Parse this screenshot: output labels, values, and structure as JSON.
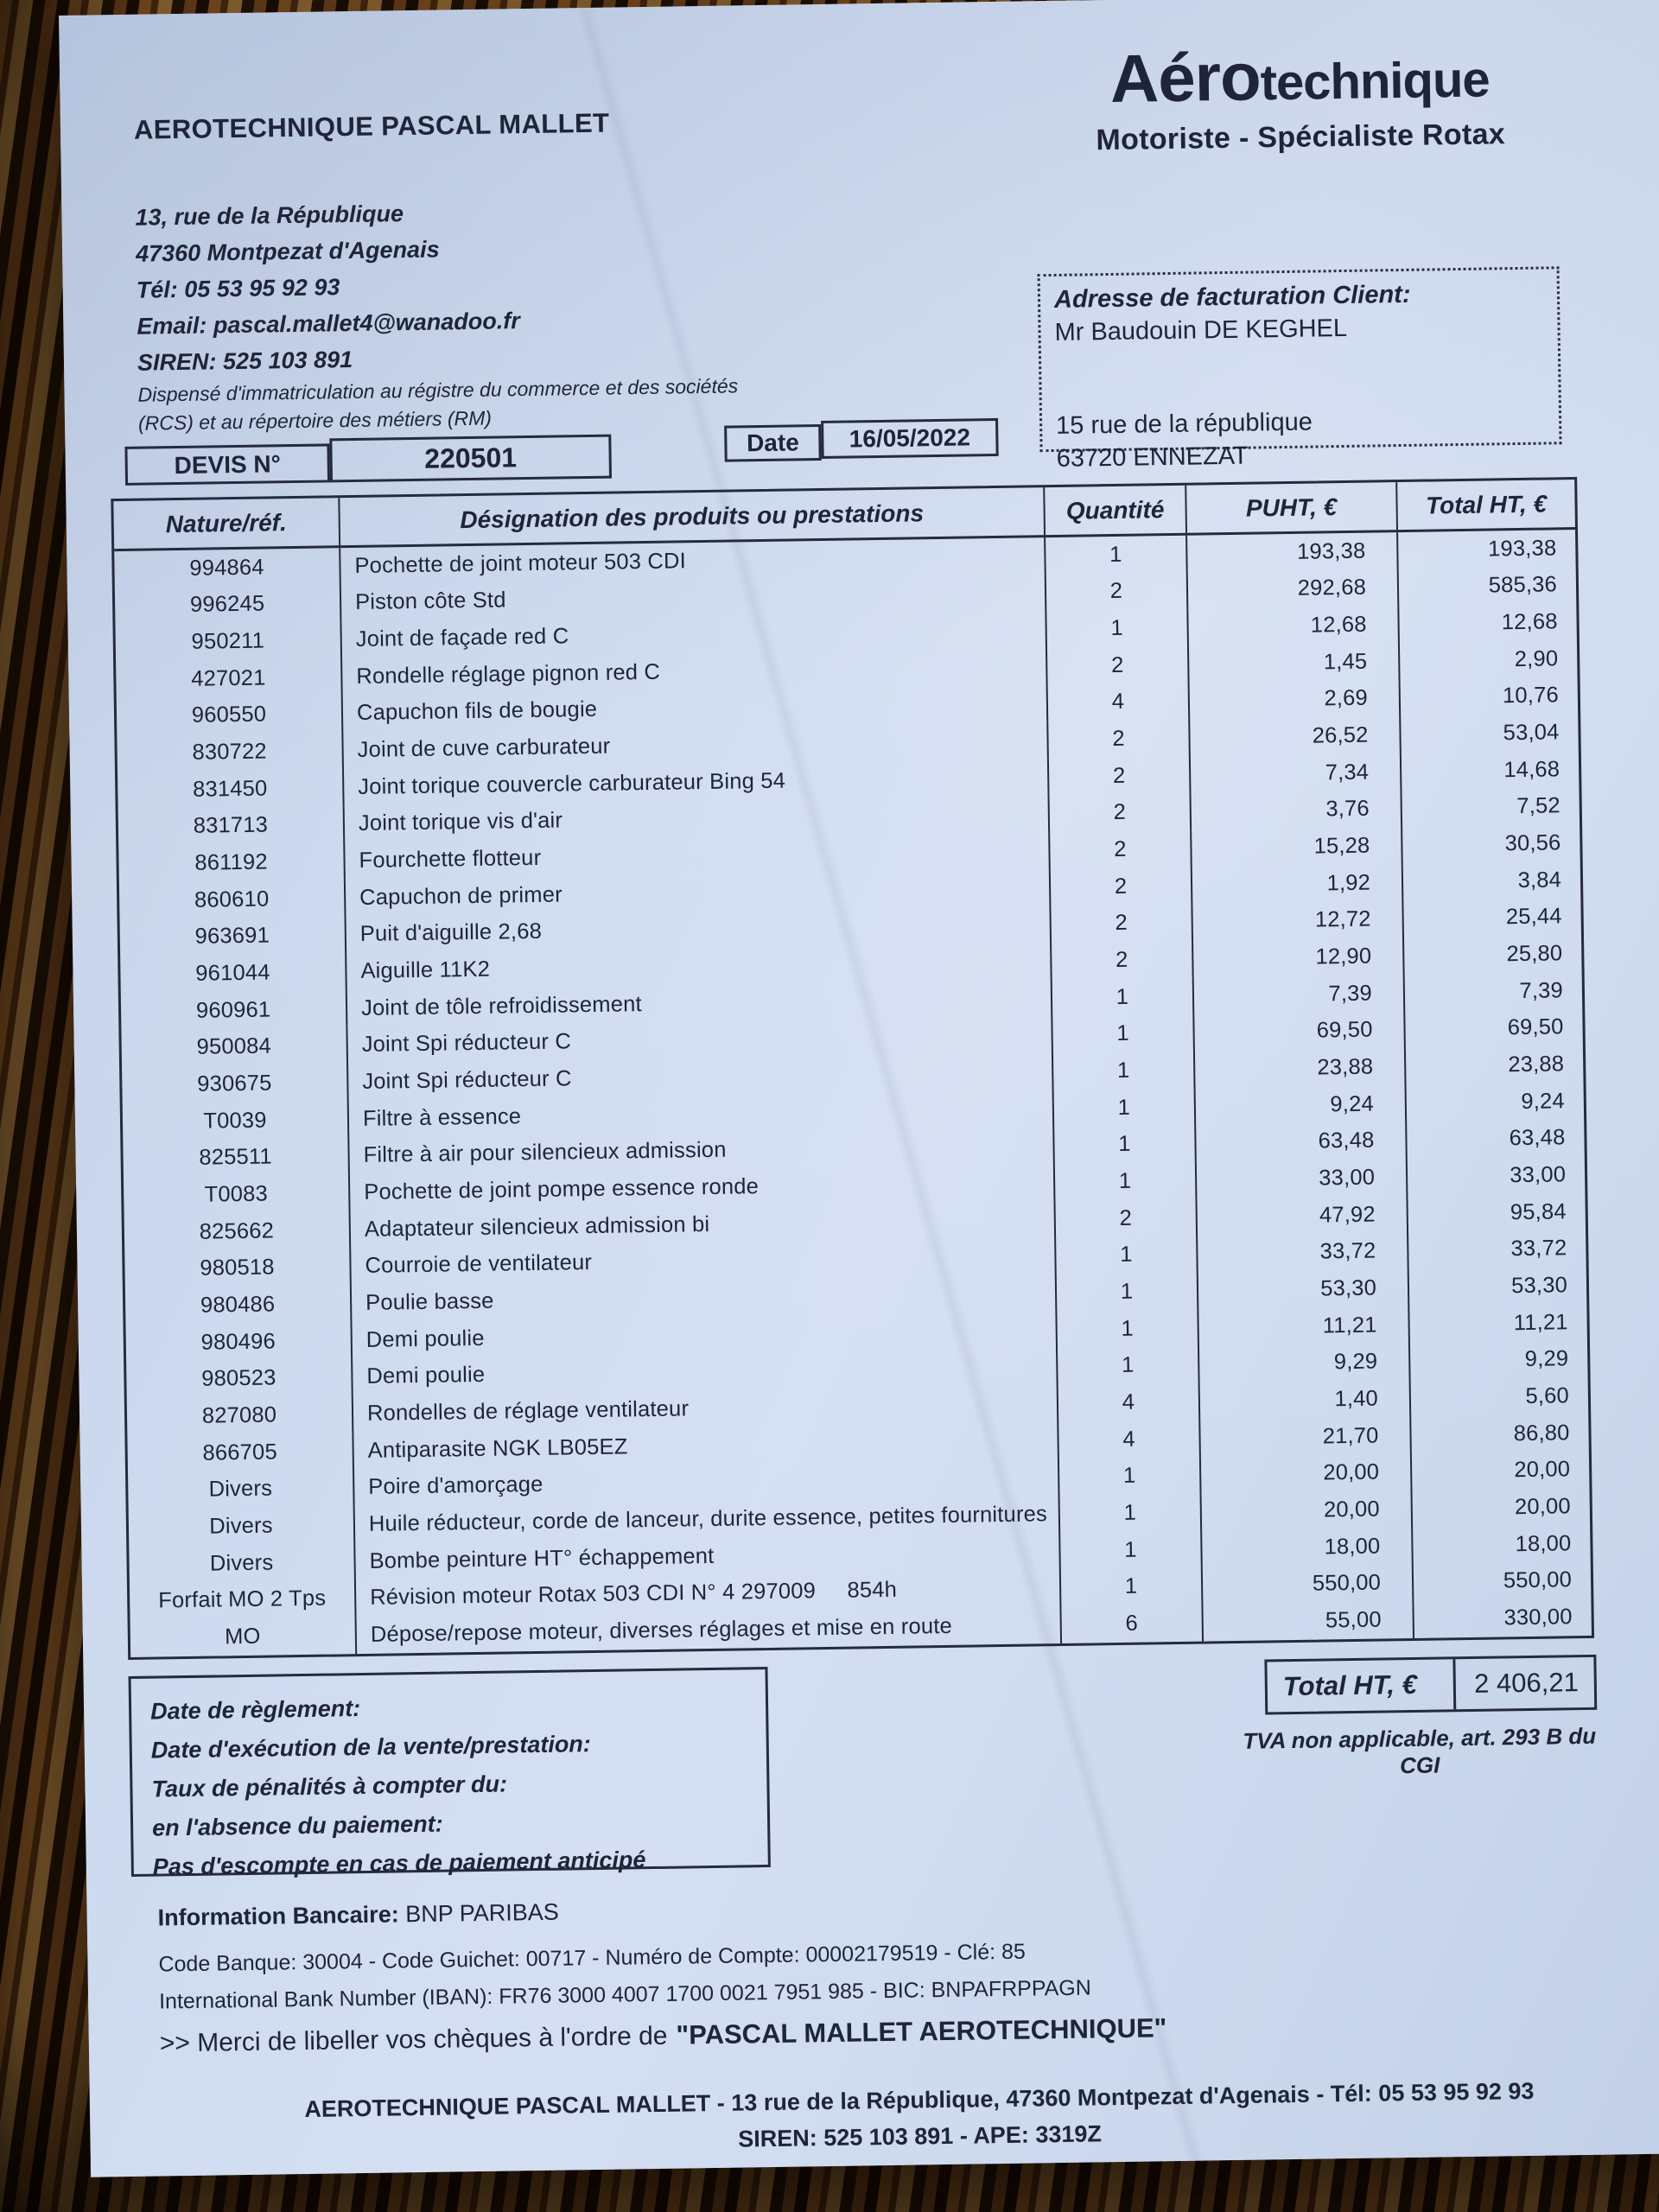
{
  "company": {
    "name": "AEROTECHNIQUE PASCAL MALLET",
    "address_line1": "13, rue de la République",
    "address_line2": "47360 Montpezat d'Agenais",
    "phone": "Tél: 05 53 95 92 93",
    "email": "Email: pascal.mallet4@wanadoo.fr",
    "siren": "SIREN: 525 103 891",
    "exemption_line1": "Dispensé d'immatriculation au régistre du commerce et des sociétés",
    "exemption_line2": "(RCS) et au répertoire des métiers (RM)"
  },
  "logo": {
    "brand_primary": "Aéro",
    "brand_secondary": "technique",
    "tagline": "Motoriste - Spécialiste Rotax"
  },
  "billing": {
    "title": "Adresse de facturation Client:",
    "name": "Mr Baudouin DE KEGHEL",
    "address_line1": "15 rue de la république",
    "address_line2": "63720 ENNEZAT"
  },
  "devis": {
    "label": "DEVIS N°",
    "number": "220501",
    "date_label": "Date",
    "date_value": "16/05/2022"
  },
  "table": {
    "headers": {
      "ref": "Nature/réf.",
      "designation": "Désignation des produits ou prestations",
      "qty": "Quantité",
      "unit_price": "PUHT, €",
      "total": "Total HT, €"
    },
    "rows": [
      {
        "ref": "994864",
        "designation": "Pochette de joint moteur 503 CDI",
        "qty": "1",
        "puht": "193,38",
        "total": "193,38"
      },
      {
        "ref": "996245",
        "designation": "Piston côte Std",
        "qty": "2",
        "puht": "292,68",
        "total": "585,36"
      },
      {
        "ref": "950211",
        "designation": "Joint de façade red C",
        "qty": "1",
        "puht": "12,68",
        "total": "12,68"
      },
      {
        "ref": "427021",
        "designation": "Rondelle réglage pignon red C",
        "qty": "2",
        "puht": "1,45",
        "total": "2,90"
      },
      {
        "ref": "960550",
        "designation": "Capuchon fils de bougie",
        "qty": "4",
        "puht": "2,69",
        "total": "10,76"
      },
      {
        "ref": "830722",
        "designation": "Joint de cuve carburateur",
        "qty": "2",
        "puht": "26,52",
        "total": "53,04"
      },
      {
        "ref": "831450",
        "designation": "Joint torique couvercle carburateur Bing 54",
        "qty": "2",
        "puht": "7,34",
        "total": "14,68"
      },
      {
        "ref": "831713",
        "designation": "Joint torique vis d'air",
        "qty": "2",
        "puht": "3,76",
        "total": "7,52"
      },
      {
        "ref": "861192",
        "designation": "Fourchette flotteur",
        "qty": "2",
        "puht": "15,28",
        "total": "30,56"
      },
      {
        "ref": "860610",
        "designation": "Capuchon de primer",
        "qty": "2",
        "puht": "1,92",
        "total": "3,84"
      },
      {
        "ref": "963691",
        "designation": "Puit d'aiguille 2,68",
        "qty": "2",
        "puht": "12,72",
        "total": "25,44"
      },
      {
        "ref": "961044",
        "designation": "Aiguille 11K2",
        "qty": "2",
        "puht": "12,90",
        "total": "25,80"
      },
      {
        "ref": "960961",
        "designation": "Joint de tôle refroidissement",
        "qty": "1",
        "puht": "7,39",
        "total": "7,39"
      },
      {
        "ref": "950084",
        "designation": "Joint Spi réducteur C",
        "qty": "1",
        "puht": "69,50",
        "total": "69,50"
      },
      {
        "ref": "930675",
        "designation": "Joint Spi réducteur C",
        "qty": "1",
        "puht": "23,88",
        "total": "23,88"
      },
      {
        "ref": "T0039",
        "designation": "Filtre à essence",
        "qty": "1",
        "puht": "9,24",
        "total": "9,24"
      },
      {
        "ref": "825511",
        "designation": "Filtre à air pour silencieux admission",
        "qty": "1",
        "puht": "63,48",
        "total": "63,48"
      },
      {
        "ref": "T0083",
        "designation": "Pochette de joint pompe essence ronde",
        "qty": "1",
        "puht": "33,00",
        "total": "33,00"
      },
      {
        "ref": "825662",
        "designation": "Adaptateur silencieux admission bi",
        "qty": "2",
        "puht": "47,92",
        "total": "95,84"
      },
      {
        "ref": "980518",
        "designation": "Courroie de ventilateur",
        "qty": "1",
        "puht": "33,72",
        "total": "33,72"
      },
      {
        "ref": "980486",
        "designation": "Poulie basse",
        "qty": "1",
        "puht": "53,30",
        "total": "53,30"
      },
      {
        "ref": "980496",
        "designation": "Demi poulie",
        "qty": "1",
        "puht": "11,21",
        "total": "11,21"
      },
      {
        "ref": "980523",
        "designation": "Demi poulie",
        "qty": "1",
        "puht": "9,29",
        "total": "9,29"
      },
      {
        "ref": "827080",
        "designation": "Rondelles de réglage ventilateur",
        "qty": "4",
        "puht": "1,40",
        "total": "5,60"
      },
      {
        "ref": "866705",
        "designation": "Antiparasite NGK LB05EZ",
        "qty": "4",
        "puht": "21,70",
        "total": "86,80"
      },
      {
        "ref": "Divers",
        "designation": "Poire d'amorçage",
        "qty": "1",
        "puht": "20,00",
        "total": "20,00"
      },
      {
        "ref": "Divers",
        "designation": "Huile réducteur, corde de lanceur, durite essence, petites fournitures",
        "qty": "1",
        "puht": "20,00",
        "total": "20,00"
      },
      {
        "ref": "Divers",
        "designation": "Bombe peinture HT° échappement",
        "qty": "1",
        "puht": "18,00",
        "total": "18,00"
      },
      {
        "ref": "Forfait MO 2 Tps",
        "designation": "Révision moteur Rotax 503 CDI N° 4 297009     854h",
        "qty": "1",
        "puht": "550,00",
        "total": "550,00"
      },
      {
        "ref": "MO",
        "designation": "Dépose/repose moteur, diverses réglages et mise en route",
        "qty": "6",
        "puht": "55,00",
        "total": "330,00"
      }
    ]
  },
  "totals": {
    "label": "Total HT, €",
    "value": "2 406,21",
    "tax_note": "TVA non applicable, art. 293 B du CGI"
  },
  "terms": {
    "lines": [
      "Date de règlement:",
      "Date d'exécution de la vente/prestation:",
      "Taux de pénalités à compter du:",
      "en l'absence du paiement:",
      "Pas d'escompte en cas de paiement anticipé"
    ]
  },
  "bank": {
    "label": "Information Bancaire:",
    "bank_name": " BNP PARIBAS",
    "line2": "Code Banque: 30004  -  Code Guichet: 00717  -  Numéro de Compte: 00002179519 -  Clé: 85",
    "line3": "International Bank Number (IBAN): FR76 3000 4007 1700 0021 7951 985  -  BIC: BNPAFRPPAGN",
    "cheque_prefix": ">> Merci de libeller vos chèques à l'ordre de",
    "cheque_payee": "\"PASCAL MALLET AEROTECHNIQUE\""
  },
  "footer": {
    "line1": "AEROTECHNIQUE PASCAL MALLET - 13 rue de la République, 47360 Montpezat d'Agenais - Tél: 05 53 95 92 93",
    "line2": "SIREN: 525 103 891  -  APE: 3319Z"
  }
}
